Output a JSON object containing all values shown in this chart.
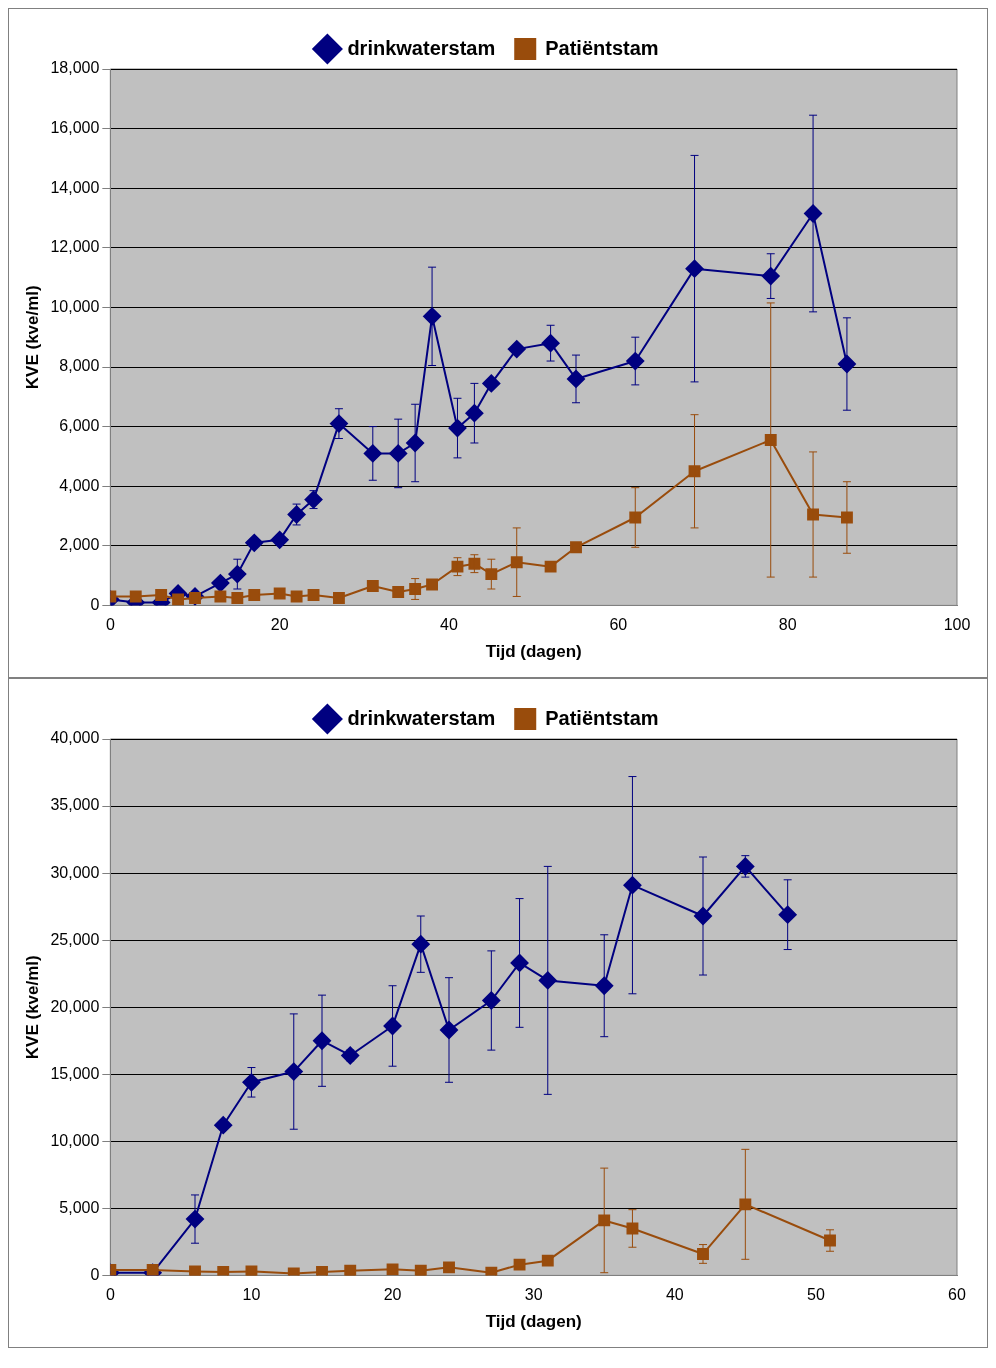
{
  "chart_data": [
    {
      "type": "line",
      "xlabel": "Tijd (dagen)",
      "ylabel": "KVE (kve/ml)",
      "legend": "top",
      "grid": "y",
      "line_style": "solid",
      "xlim": [
        0,
        100
      ],
      "xticks": [
        0,
        20,
        40,
        60,
        80,
        100
      ],
      "ylim": [
        0,
        18000
      ],
      "yticks": [
        {
          "value": 0,
          "label": "0"
        },
        {
          "value": 2000,
          "label": "2,000"
        },
        {
          "value": 4000,
          "label": "4,000"
        },
        {
          "value": 6000,
          "label": "6,000"
        },
        {
          "value": 8000,
          "label": "8,000"
        },
        {
          "value": 10000,
          "label": "10,000"
        },
        {
          "value": 12000,
          "label": "12,000"
        },
        {
          "value": 14000,
          "label": "14,000"
        },
        {
          "value": 16000,
          "label": "16,000"
        },
        {
          "value": 18000,
          "label": "18,000"
        }
      ],
      "x": [
        0,
        3,
        6,
        8,
        10,
        13,
        15,
        17,
        20,
        22,
        24,
        27,
        31,
        34,
        36,
        38,
        41,
        43,
        45,
        48,
        52,
        55,
        62,
        69,
        78,
        83,
        87
      ],
      "series": [
        {
          "name": "drinkwaterstam",
          "color": "#000080",
          "marker": "diamond",
          "values": [
            200,
            100,
            100,
            400,
            300,
            750,
            1050,
            2100,
            2200,
            3050,
            3550,
            6100,
            5100,
            5100,
            5450,
            9700,
            5950,
            6450,
            7450,
            8600,
            8800,
            7600,
            8200,
            11300,
            11050,
            13150,
            8100
          ],
          "errors": [
            null,
            null,
            null,
            null,
            null,
            null,
            500,
            null,
            null,
            350,
            300,
            500,
            900,
            1150,
            1300,
            1650,
            1000,
            1000,
            null,
            null,
            600,
            800,
            800,
            3800,
            750,
            3300,
            1550
          ]
        },
        {
          "name": "Patiëntstam",
          "color": "#994c0c",
          "marker": "square",
          "values": [
            300,
            300,
            350,
            200,
            250,
            300,
            250,
            350,
            400,
            300,
            350,
            250,
            650,
            450,
            550,
            700,
            1300,
            1400,
            1050,
            1450,
            1300,
            1950,
            2950,
            4500,
            5550,
            3050,
            2950
          ],
          "errors": [
            null,
            null,
            null,
            null,
            null,
            null,
            null,
            null,
            null,
            null,
            null,
            null,
            null,
            null,
            350,
            null,
            300,
            300,
            500,
            1150,
            null,
            null,
            1000,
            1900,
            4600,
            2100,
            1200
          ]
        }
      ]
    },
    {
      "type": "line",
      "xlabel": "Tijd (dagen)",
      "ylabel": "KVE (kve/ml)",
      "legend": "top",
      "grid": "y",
      "line_style": "solid",
      "xlim": [
        0,
        60
      ],
      "xticks": [
        0,
        10,
        20,
        30,
        40,
        50,
        60
      ],
      "ylim": [
        0,
        40000
      ],
      "yticks": [
        {
          "value": 0,
          "label": "0"
        },
        {
          "value": 5000,
          "label": "5,000"
        },
        {
          "value": 10000,
          "label": "10,000"
        },
        {
          "value": 15000,
          "label": "15,000"
        },
        {
          "value": 20000,
          "label": "20,000"
        },
        {
          "value": 25000,
          "label": "25,000"
        },
        {
          "value": 30000,
          "label": "30,000"
        },
        {
          "value": 35000,
          "label": "35,000"
        },
        {
          "value": 40000,
          "label": "40,000"
        }
      ],
      "series": [
        {
          "name": "drinkwaterstam",
          "color": "#000080",
          "marker": "diamond",
          "x": [
            0,
            3,
            6,
            8,
            10,
            13,
            15,
            17,
            20,
            22,
            24,
            27,
            29,
            31,
            35,
            37,
            42,
            45,
            48
          ],
          "values": [
            200,
            200,
            4200,
            11200,
            14400,
            15200,
            17500,
            16400,
            18600,
            24700,
            18300,
            20500,
            23300,
            22000,
            21600,
            29100,
            26800,
            30500,
            26900
          ],
          "errors": [
            null,
            null,
            1800,
            null,
            1100,
            4300,
            3400,
            400,
            3000,
            2100,
            3900,
            3700,
            4800,
            8500,
            3800,
            8100,
            4400,
            800,
            2600
          ]
        },
        {
          "name": "Patiëntstam",
          "color": "#994c0c",
          "marker": "square",
          "x": [
            0,
            3,
            6,
            8,
            10,
            13,
            15,
            17,
            20,
            22,
            24,
            27,
            29,
            31,
            35,
            37,
            42,
            45,
            51
          ],
          "values": [
            400,
            400,
            300,
            250,
            300,
            150,
            250,
            350,
            450,
            350,
            600,
            200,
            800,
            1100,
            4100,
            3500,
            1600,
            5300,
            2600
          ],
          "errors": [
            null,
            null,
            null,
            null,
            null,
            null,
            null,
            null,
            null,
            null,
            null,
            null,
            null,
            null,
            3900,
            1400,
            700,
            4100,
            800
          ]
        }
      ]
    }
  ]
}
